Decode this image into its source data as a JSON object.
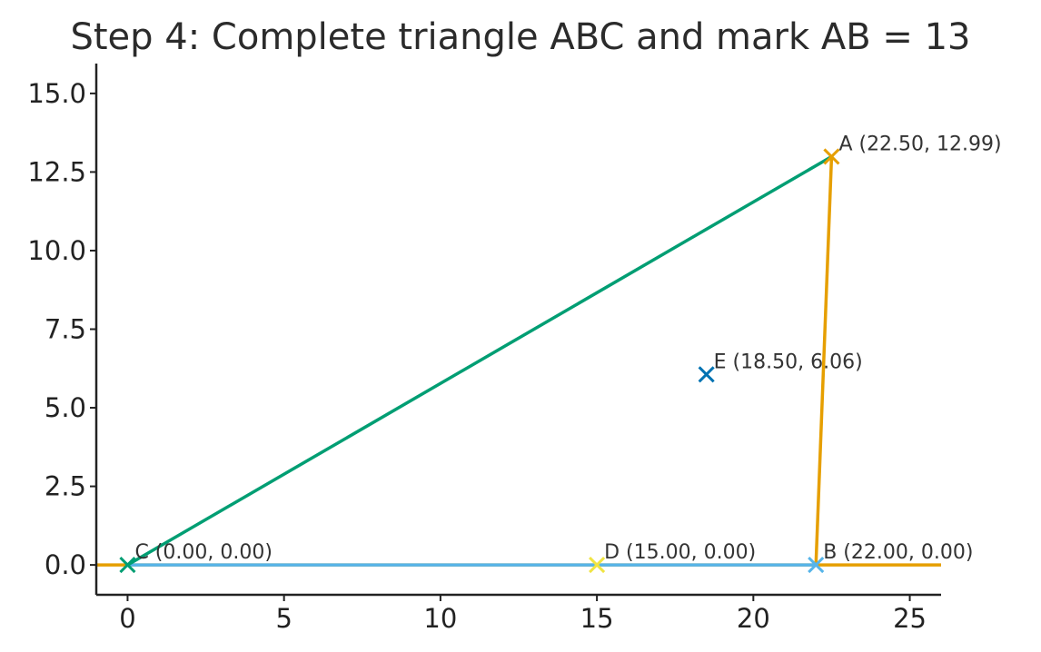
{
  "chart_data": {
    "type": "scatter",
    "title": "Step 4: Complete triangle ABC and mark AB = 13",
    "xlabel": "",
    "ylabel": "",
    "xlim": [
      -1,
      26
    ],
    "ylim": [
      -0.95,
      15.95
    ],
    "xticks": [
      0,
      5,
      10,
      15,
      20,
      25
    ],
    "xtick_labels": [
      "0",
      "5",
      "10",
      "15",
      "20",
      "25"
    ],
    "yticks": [
      0.0,
      2.5,
      5.0,
      7.5,
      10.0,
      12.5,
      15.0
    ],
    "ytick_labels": [
      "0.0",
      "2.5",
      "5.0",
      "7.5",
      "10.0",
      "12.5",
      "15.0"
    ],
    "grid": false,
    "points": [
      {
        "id": "A",
        "x": 22.5,
        "y": 12.99,
        "label": "A (22.50, 12.99)",
        "color": "#E69F00"
      },
      {
        "id": "B",
        "x": 22.0,
        "y": 0.0,
        "label": "B (22.00, 0.00)",
        "color": "#56B4E9"
      },
      {
        "id": "C",
        "x": 0.0,
        "y": 0.0,
        "label": "C (0.00, 0.00)",
        "color": "#009E73"
      },
      {
        "id": "D",
        "x": 15.0,
        "y": 0.0,
        "label": "D (15.00, 0.00)",
        "color": "#F0E442"
      },
      {
        "id": "E",
        "x": 18.5,
        "y": 6.06,
        "label": "E (18.50, 6.06)",
        "color": "#0072B2"
      }
    ],
    "segments": [
      {
        "id": "base-extension",
        "x": [
          -1,
          26
        ],
        "y": [
          0,
          0
        ],
        "color": "#E69F00"
      },
      {
        "id": "CB",
        "x": [
          0,
          22
        ],
        "y": [
          0,
          0
        ],
        "color": "#56B4E9"
      },
      {
        "id": "CA",
        "x": [
          0,
          22.5
        ],
        "y": [
          0,
          12.99
        ],
        "color": "#009E73"
      },
      {
        "id": "BA",
        "x": [
          22,
          22.5
        ],
        "y": [
          0,
          12.99
        ],
        "color": "#E69F00"
      }
    ]
  }
}
